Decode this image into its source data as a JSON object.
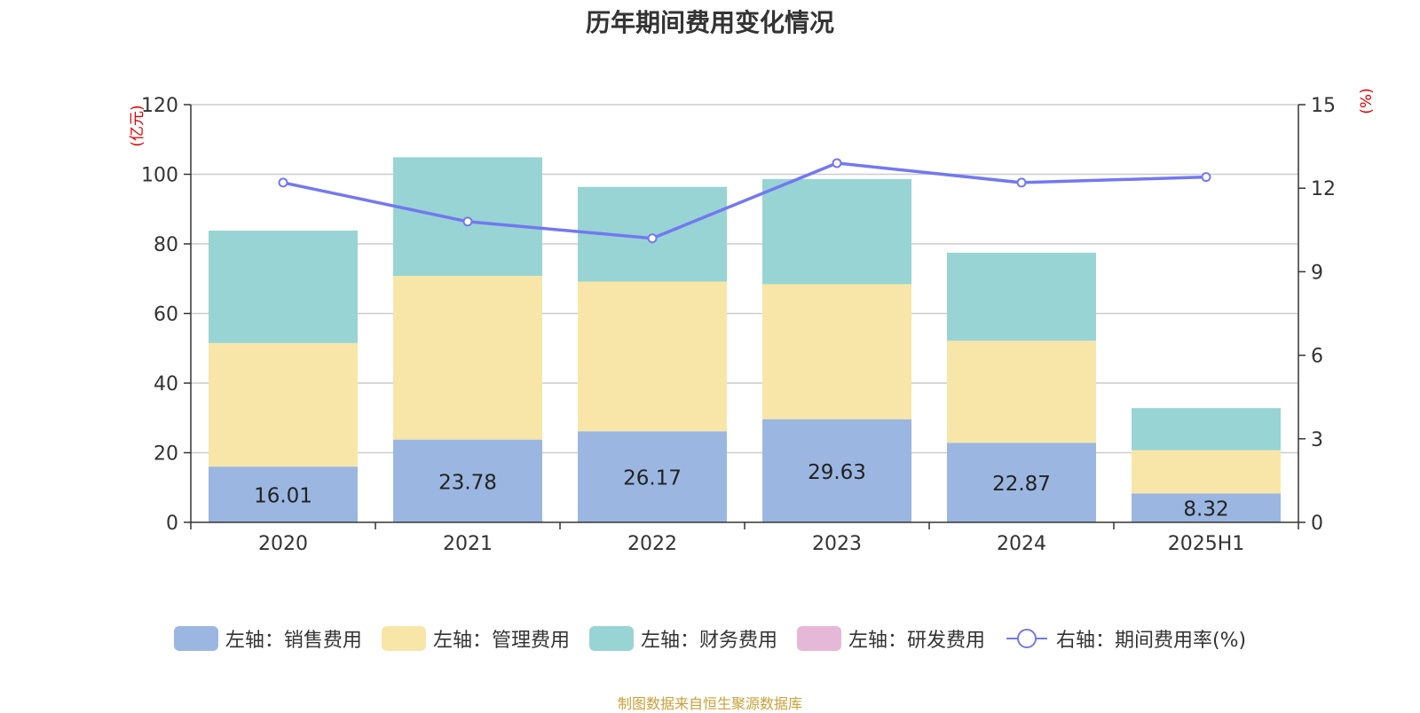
{
  "title": "历年期间费用变化情况",
  "source_note": "制图数据来自恒生聚源数据库",
  "colors": {
    "sales": "#9bb7e1",
    "admin": "#f8e6a8",
    "finance": "#98d4d4",
    "rnd": "#e6b8d8",
    "rate_line": "#7378f0",
    "axis_unit": "#e00000",
    "grid": "#cccccc"
  },
  "chart_data": {
    "type": "bar",
    "title": "历年期间费用变化情况",
    "categories": [
      "2020",
      "2021",
      "2022",
      "2023",
      "2024",
      "2025H1"
    ],
    "stacked": true,
    "y_left": {
      "unit_label": "(亿元)",
      "ylim": [
        0,
        120
      ],
      "ticks": [
        "0",
        "20",
        "40",
        "60",
        "80",
        "100",
        "120"
      ]
    },
    "y_right": {
      "unit_label": "(%)",
      "ylim": [
        0,
        15
      ],
      "ticks": [
        "0",
        "3",
        "6",
        "9",
        "12",
        "15"
      ]
    },
    "series": [
      {
        "name": "左轴：销售费用",
        "axis": "left",
        "type": "bar",
        "values": [
          16.01,
          23.78,
          26.17,
          29.63,
          22.87,
          8.32
        ],
        "labels": [
          "16.01",
          "23.78",
          "26.17",
          "29.63",
          "22.87",
          "8.32"
        ]
      },
      {
        "name": "左轴：管理费用",
        "axis": "left",
        "type": "bar",
        "values": [
          35.5,
          47.0,
          43.0,
          38.8,
          29.3,
          12.4
        ]
      },
      {
        "name": "左轴：财务费用",
        "axis": "left",
        "type": "bar",
        "values": [
          32.3,
          34.1,
          27.2,
          30.2,
          25.3,
          12.1
        ]
      },
      {
        "name": "左轴：研发费用",
        "axis": "left",
        "type": "bar",
        "values": [
          0,
          0,
          0,
          0,
          0,
          0
        ]
      },
      {
        "name": "右轴：期间费用率(%)",
        "axis": "right",
        "type": "line",
        "values": [
          12.2,
          10.8,
          10.2,
          12.9,
          12.2,
          12.4
        ]
      }
    ],
    "grid": true,
    "legend_position": "bottom"
  }
}
